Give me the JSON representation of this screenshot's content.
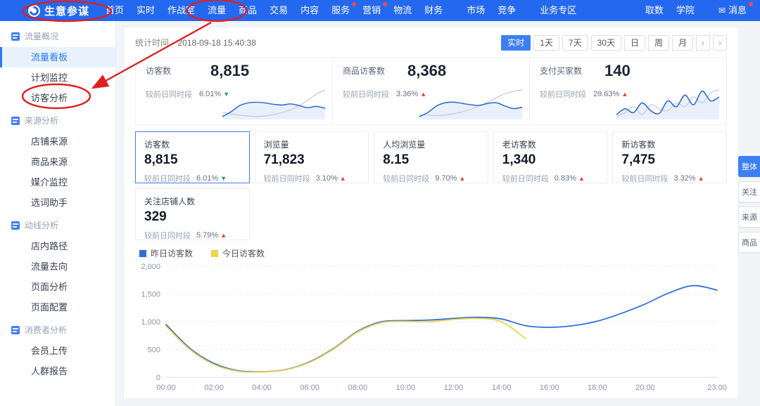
{
  "topnav": {
    "logo": "生意参谋",
    "items": [
      {
        "key": "home",
        "label": "首页"
      },
      {
        "key": "realtime",
        "label": "实时"
      },
      {
        "key": "war-room",
        "label": "作战室"
      },
      {
        "key": "traffic",
        "label": "流量"
      },
      {
        "key": "product",
        "label": "商品"
      },
      {
        "key": "trade",
        "label": "交易"
      },
      {
        "key": "content",
        "label": "内容"
      },
      {
        "key": "service",
        "label": "服务",
        "badge": true
      },
      {
        "key": "marketing",
        "label": "营销",
        "badge": true
      },
      {
        "key": "logistics",
        "label": "物流"
      },
      {
        "key": "finance",
        "label": "财务"
      },
      {
        "key": "market",
        "label": "市场",
        "gap_before": true
      },
      {
        "key": "compete",
        "label": "竞争"
      },
      {
        "key": "biz-zone",
        "label": "业务专区",
        "gap_before": true
      },
      {
        "key": "data-extract",
        "label": "取数",
        "push_right": true
      },
      {
        "key": "academy",
        "label": "学院"
      },
      {
        "key": "message",
        "label": "消息",
        "gap_before": true,
        "badge": true,
        "icon": "mail"
      }
    ]
  },
  "sidebar": {
    "sections": [
      {
        "key": "traffic-overview",
        "title": "流量概况",
        "items": [
          {
            "key": "traffic-dashboard",
            "label": "流量看板",
            "active": true
          },
          {
            "key": "plan-monitor",
            "label": "计划监控"
          },
          {
            "key": "visitor-analysis",
            "label": "访客分析"
          }
        ]
      },
      {
        "key": "source-analysis",
        "title": "来源分析",
        "items": [
          {
            "key": "shop-source",
            "label": "店铺来源"
          },
          {
            "key": "product-source",
            "label": "商品来源"
          },
          {
            "key": "media-monitor",
            "label": "媒介监控"
          },
          {
            "key": "word-helper",
            "label": "选词助手"
          }
        ]
      },
      {
        "key": "path-analysis",
        "title": "动线分析",
        "items": [
          {
            "key": "instore-path",
            "label": "店内路径"
          },
          {
            "key": "traffic-destination",
            "label": "流量去向"
          },
          {
            "key": "page-analysis",
            "label": "页面分析"
          },
          {
            "key": "page-config",
            "label": "页面配置"
          }
        ]
      },
      {
        "key": "consumer-analysis",
        "title": "消费者分析",
        "items": [
          {
            "key": "member-upload",
            "label": "会员上传"
          },
          {
            "key": "crowd-report",
            "label": "人群报告"
          }
        ]
      }
    ]
  },
  "toolbar": {
    "stat_time_label": "统计时间",
    "stat_time_value": "2018-09-18 15:40:38",
    "ranges": [
      {
        "key": "realtime",
        "label": "实时",
        "active": true
      },
      {
        "key": "1d",
        "label": "1天"
      },
      {
        "key": "7d",
        "label": "7天"
      },
      {
        "key": "30d",
        "label": "30天"
      },
      {
        "key": "day",
        "label": "日"
      },
      {
        "key": "week",
        "label": "周"
      },
      {
        "key": "month",
        "label": "月"
      }
    ],
    "pager_prev": "‹",
    "pager_next": "›"
  },
  "overview_cards": [
    {
      "key": "visitors",
      "label": "访客数",
      "value": "8,815",
      "compare_label": "较前日同时段",
      "percent": "6.01%",
      "direction": "down",
      "spark_main": [
        18,
        32,
        50,
        58,
        60,
        58,
        54,
        52,
        55,
        50,
        44,
        48,
        42
      ],
      "spark_compare": [
        30,
        26,
        22,
        20,
        18,
        20,
        24,
        30,
        38,
        50,
        66,
        84,
        96
      ]
    },
    {
      "key": "product-visitors",
      "label": "商品访客数",
      "value": "8,368",
      "compare_label": "较前日同时段",
      "percent": "3.36%",
      "direction": "up",
      "spark_main": [
        15,
        28,
        48,
        58,
        60,
        56,
        52,
        50,
        56,
        58,
        48,
        40,
        44
      ],
      "spark_compare": [
        22,
        20,
        18,
        20,
        24,
        30,
        38,
        48,
        60,
        74,
        86,
        94,
        98
      ]
    },
    {
      "key": "pay-buyers",
      "label": "支付买家数",
      "value": "140",
      "compare_label": "较前日同时段",
      "percent": "29.63%",
      "direction": "up",
      "spark_main": [
        25,
        40,
        30,
        55,
        35,
        28,
        60,
        45,
        75,
        50,
        85,
        60,
        70
      ],
      "spark_compare": [
        20,
        30,
        45,
        25,
        50,
        40,
        35,
        55,
        45,
        70,
        55,
        80,
        88
      ]
    }
  ],
  "metric_tiles": [
    {
      "key": "visitors",
      "label": "访客数",
      "value": "8,815",
      "compare_label": "较前日同时段",
      "percent": "6.01%",
      "direction": "down",
      "selected": true
    },
    {
      "key": "pageviews",
      "label": "浏览量",
      "value": "71,823",
      "compare_label": "较前日同时段",
      "percent": "3.10%",
      "direction": "up"
    },
    {
      "key": "avg-pageviews",
      "label": "人均浏览量",
      "value": "8.15",
      "compare_label": "较前日同时段",
      "percent": "9.70%",
      "direction": "up"
    },
    {
      "key": "old-visitors",
      "label": "老访客数",
      "value": "1,340",
      "compare_label": "较前日同时段",
      "percent": "0.83%",
      "direction": "up"
    },
    {
      "key": "new-visitors",
      "label": "新访客数",
      "value": "7,475",
      "compare_label": "较前日同时段",
      "percent": "3.32%",
      "direction": "up"
    },
    {
      "key": "shop-followers",
      "label": "关注店铺人数",
      "value": "329",
      "compare_label": "较前日同时段",
      "percent": "5.79%",
      "direction": "up"
    }
  ],
  "side_tabs": [
    {
      "key": "overall",
      "label": "整体",
      "active": true
    },
    {
      "key": "follow",
      "label": "关注"
    },
    {
      "key": "source",
      "label": "来源"
    },
    {
      "key": "product",
      "label": "商品"
    }
  ],
  "chart_data": {
    "type": "line",
    "title": "",
    "xlabel": "",
    "ylabel": "",
    "x_labels": [
      "00:00",
      "02:00",
      "04:00",
      "06:00",
      "08:00",
      "10:00",
      "12:00",
      "14:00",
      "16:00",
      "18:00",
      "20:00",
      "23:00"
    ],
    "x_label_hours": [
      0,
      2,
      4,
      6,
      8,
      10,
      12,
      14,
      16,
      18,
      20,
      23
    ],
    "ylim": [
      0,
      2000
    ],
    "ytick_values": [
      0,
      500,
      1000,
      1500,
      2000
    ],
    "yticks": [
      "0",
      "500",
      "1,000",
      "1,500",
      "2,000"
    ],
    "grid": "horizontal-dashed",
    "legend_position": "top-left",
    "series": [
      {
        "name": "昨日访客数",
        "color": "#2f6fd8",
        "values": [
          950,
          520,
          250,
          120,
          100,
          140,
          280,
          520,
          830,
          1000,
          1020,
          1030,
          1060,
          1080,
          1050,
          930,
          900,
          930,
          1010,
          1150,
          1320,
          1520,
          1650,
          1570
        ]
      },
      {
        "name": "今日访客数",
        "color": "#eed34b",
        "values": [
          920,
          500,
          230,
          110,
          95,
          135,
          270,
          510,
          815,
          985,
          1005,
          1000,
          1040,
          1060,
          1000,
          700
        ]
      }
    ]
  },
  "colors": {
    "nav_bg": "#2468f0",
    "accent": "#3b7ff3",
    "up_red": "#e9432f",
    "down_green": "#1ea362",
    "yesterday_line": "#2f6fd8",
    "today_line": "#eed34b"
  }
}
